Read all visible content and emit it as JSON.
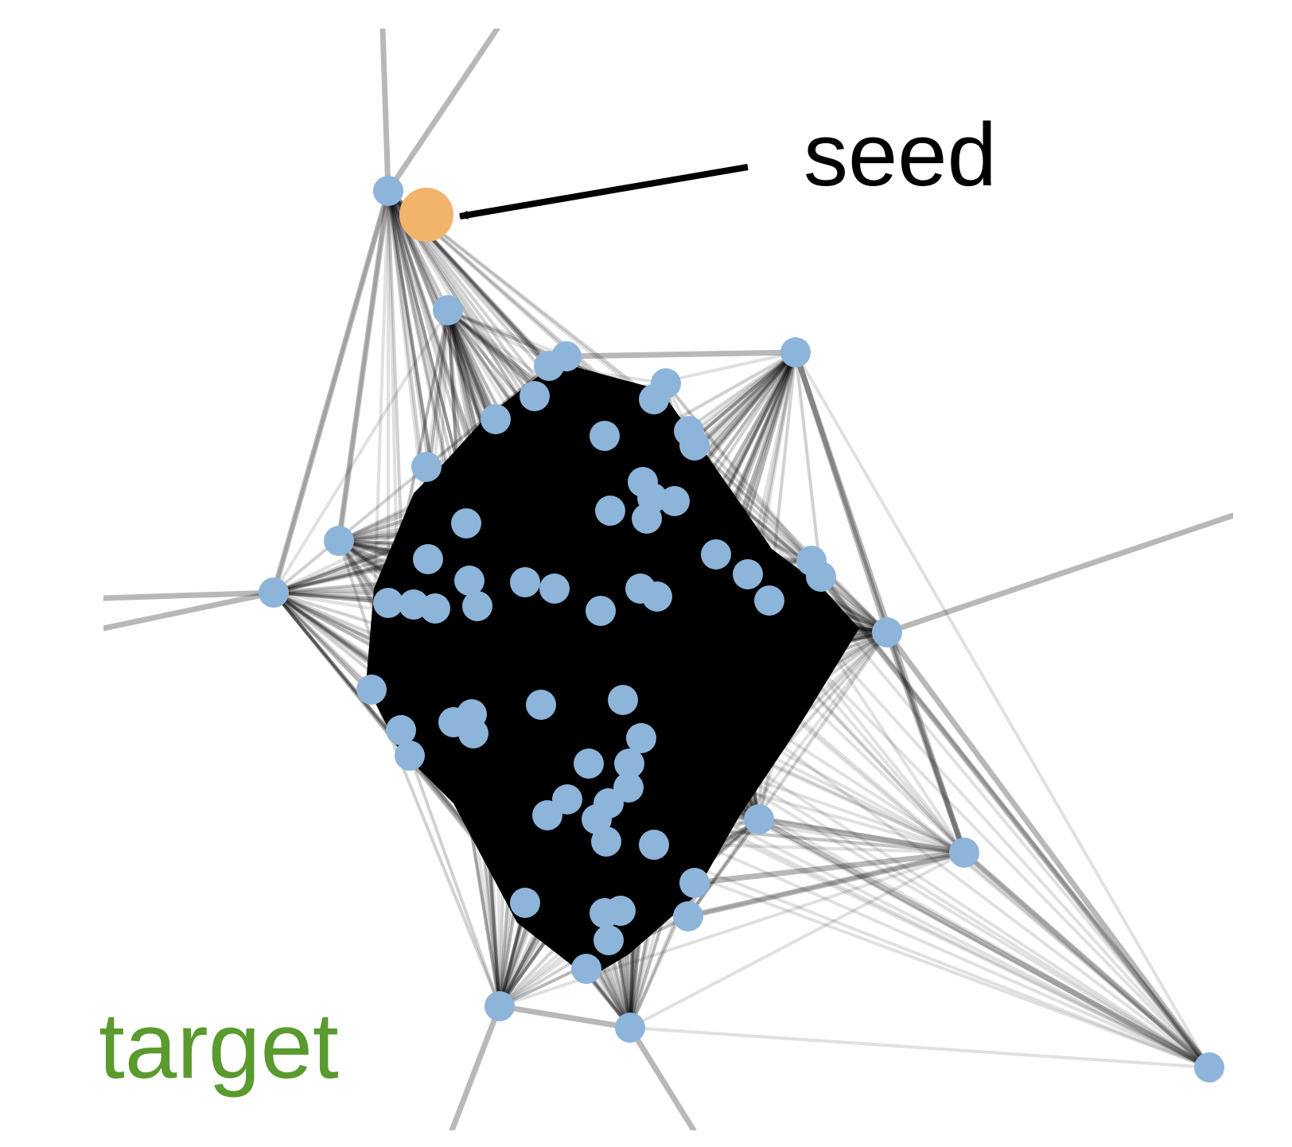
{
  "labels": {
    "seed": "seed",
    "target": "target"
  },
  "colors": {
    "node": "#8db4d9",
    "seed_node": "#f2b36a",
    "target_text": "#5a9a2e",
    "edge": "#000000",
    "arrow": "#000000",
    "background": "#ffffff"
  }
}
